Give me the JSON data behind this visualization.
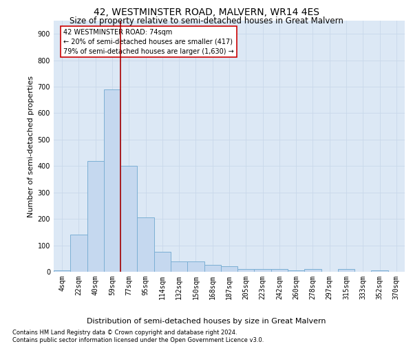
{
  "title": "42, WESTMINSTER ROAD, MALVERN, WR14 4ES",
  "subtitle": "Size of property relative to semi-detached houses in Great Malvern",
  "xlabel": "Distribution of semi-detached houses by size in Great Malvern",
  "ylabel": "Number of semi-detached properties",
  "footnote1": "Contains HM Land Registry data © Crown copyright and database right 2024.",
  "footnote2": "Contains public sector information licensed under the Open Government Licence v3.0.",
  "bar_labels": [
    "4sqm",
    "22sqm",
    "40sqm",
    "59sqm",
    "77sqm",
    "95sqm",
    "114sqm",
    "132sqm",
    "150sqm",
    "168sqm",
    "187sqm",
    "205sqm",
    "223sqm",
    "242sqm",
    "260sqm",
    "278sqm",
    "297sqm",
    "315sqm",
    "333sqm",
    "352sqm",
    "370sqm"
  ],
  "bar_values": [
    5,
    140,
    418,
    690,
    400,
    205,
    75,
    40,
    40,
    25,
    20,
    10,
    10,
    10,
    5,
    10,
    0,
    10,
    0,
    5,
    0
  ],
  "bar_color": "#c5d8ef",
  "bar_edge_color": "#7bafd4",
  "property_label": "42 WESTMINSTER ROAD: 74sqm",
  "annotation_line1": "← 20% of semi-detached houses are smaller (417)",
  "annotation_line2": "79% of semi-detached houses are larger (1,630) →",
  "vline_x_index": 3.5,
  "vline_color": "#aa0000",
  "annotation_box_edge": "#cc0000",
  "ylim": [
    0,
    950
  ],
  "yticks": [
    0,
    100,
    200,
    300,
    400,
    500,
    600,
    700,
    800,
    900
  ],
  "grid_color": "#c8d8ea",
  "bg_color": "#dce8f5",
  "title_fontsize": 10,
  "subtitle_fontsize": 8.5,
  "ylabel_fontsize": 8,
  "xlabel_fontsize": 8,
  "tick_fontsize": 7,
  "annot_fontsize": 7,
  "footnote_fontsize": 6
}
